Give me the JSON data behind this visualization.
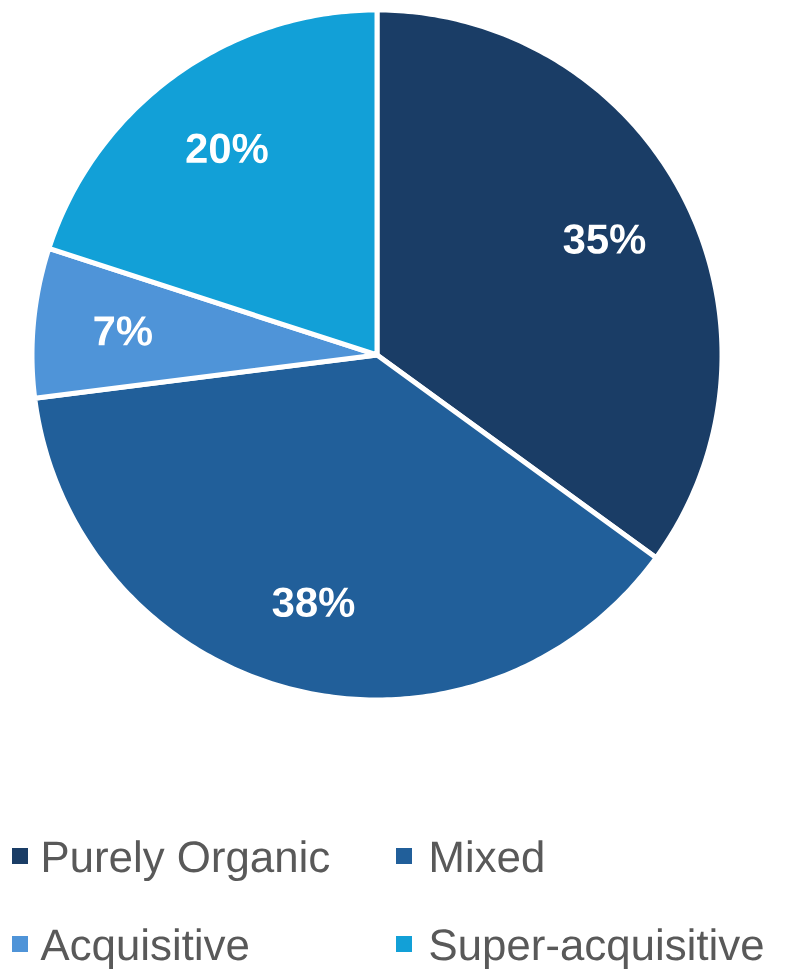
{
  "chart_data": {
    "type": "pie",
    "categories": [
      "Purely Organic",
      "Mixed",
      "Acquisitive",
      "Super-acquisitive"
    ],
    "values": [
      35,
      38,
      7,
      20
    ],
    "colors": [
      "#1a3d66",
      "#215f9a",
      "#4f94d8",
      "#12a0d7"
    ],
    "value_labels": [
      "35%",
      "38%",
      "7%",
      "20%"
    ],
    "legend": "bottom"
  }
}
